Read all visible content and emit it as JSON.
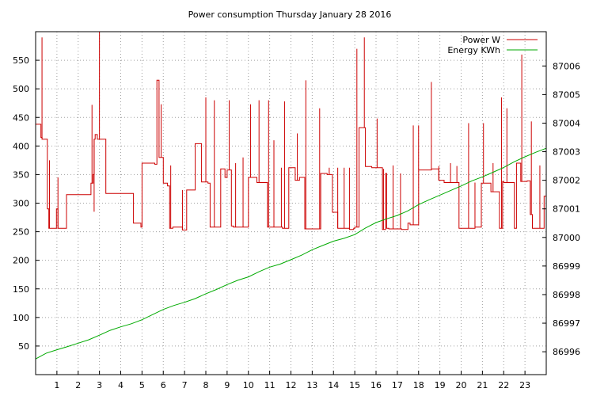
{
  "chart_data": {
    "type": "line",
    "title": "Power consumption Thursday January 28 2016",
    "xlabel": "",
    "ylabel": "",
    "y2label": "",
    "xlim": [
      0,
      24
    ],
    "ylim": [
      0,
      600
    ],
    "y2lim": [
      86995.2,
      87007.2
    ],
    "grid": true,
    "legend_position": "top-right",
    "x_ticks": [
      1,
      2,
      3,
      4,
      5,
      6,
      7,
      8,
      9,
      10,
      11,
      12,
      13,
      14,
      15,
      16,
      17,
      18,
      19,
      20,
      21,
      22,
      23
    ],
    "y_ticks": [
      50,
      100,
      150,
      200,
      250,
      300,
      350,
      400,
      450,
      500,
      550
    ],
    "y2_ticks": [
      86996,
      86997,
      86998,
      86999,
      87000,
      87001,
      87002,
      87003,
      87004,
      87005,
      87006
    ],
    "series": [
      {
        "name": "Power W",
        "axis": "left",
        "color": "#cc0000",
        "x": [
          0,
          0.25,
          0.25,
          0.3,
          0.3,
          0.55,
          0.55,
          0.62,
          0.62,
          0.72,
          0.72,
          0.98,
          0.98,
          1.05,
          1.05,
          1.45,
          1.45,
          2.6,
          2.6,
          2.7,
          2.7,
          2.75,
          2.75,
          2.8,
          2.8,
          2.9,
          2.9,
          3.0,
          3.0,
          3.05,
          3.05,
          3.3,
          3.3,
          4.6,
          4.6,
          4.95,
          4.95,
          5.0,
          5.0,
          5.6,
          5.6,
          5.7,
          5.7,
          5.8,
          5.8,
          6.0,
          6.0,
          6.2,
          6.2,
          6.3,
          6.3,
          6.45,
          6.45,
          6.9,
          6.9,
          7.1,
          7.1,
          7.5,
          7.5,
          7.8,
          7.8,
          8.1,
          8.1,
          8.2,
          8.2,
          8.7,
          8.7,
          8.9,
          8.9,
          9.0,
          9.0,
          9.2,
          9.2,
          9.3,
          9.3,
          10.0,
          10.0,
          10.4,
          10.4,
          10.8,
          10.8,
          10.9,
          10.9,
          11.6,
          11.6,
          11.9,
          11.9,
          12.2,
          12.2,
          12.4,
          12.4,
          12.65,
          12.65,
          13.4,
          13.4,
          13.7,
          13.7,
          13.95,
          13.95,
          14.2,
          14.2,
          14.75,
          14.75,
          14.95,
          14.95,
          15.0,
          15.0,
          15.2,
          15.2,
          15.3,
          15.3,
          15.5,
          15.5,
          15.8,
          15.8,
          16.3,
          16.3,
          16.45,
          16.45,
          16.5,
          16.5,
          16.6,
          16.6,
          17.2,
          17.2,
          17.5,
          17.5,
          17.6,
          17.6,
          18.0,
          18.0,
          18.6,
          18.6,
          18.95,
          18.95,
          19.2,
          19.2,
          19.9,
          19.9,
          20.3,
          20.3,
          20.65,
          20.65,
          20.95,
          20.95,
          21.4,
          21.4,
          21.8,
          21.8,
          21.95,
          21.95,
          22.0,
          22.0,
          22.4,
          22.4,
          22.5,
          22.5,
          22.6,
          22.6,
          22.8,
          22.8,
          23.1,
          23.1,
          23.25,
          23.25,
          23.35,
          23.35,
          23.75,
          23.75,
          23.9,
          23.9,
          24
        ],
        "values": [
          438,
          438,
          415,
          415,
          412,
          412,
          290,
          290,
          256,
          256,
          256,
          256,
          290,
          290,
          256,
          256,
          315,
          315,
          335,
          335,
          350,
          350,
          412,
          412,
          420,
          420,
          412,
          412,
          412,
          412,
          412,
          412,
          317,
          317,
          265,
          265,
          258,
          258,
          370,
          370,
          368,
          368,
          515,
          515,
          380,
          380,
          335,
          335,
          330,
          330,
          256,
          256,
          258,
          258,
          253,
          253,
          323,
          323,
          404,
          404,
          337,
          337,
          335,
          335,
          258,
          258,
          360,
          360,
          345,
          345,
          358,
          358,
          260,
          260,
          258,
          258,
          345,
          345,
          336,
          336,
          336,
          336,
          258,
          258,
          256,
          256,
          362,
          362,
          340,
          340,
          345,
          345,
          255,
          255,
          352,
          352,
          350,
          350,
          284,
          284,
          256,
          256,
          254,
          254,
          256,
          256,
          258,
          258,
          432,
          432,
          432,
          432,
          364,
          364,
          362,
          362,
          254,
          254,
          352,
          352,
          256,
          256,
          255,
          255,
          254,
          254,
          265,
          265,
          262,
          262,
          358,
          358,
          360,
          360,
          340,
          340,
          336,
          336,
          256,
          256,
          256,
          256,
          258,
          258,
          335,
          335,
          320,
          320,
          256,
          256,
          338,
          338,
          336,
          336,
          336,
          336,
          256,
          256,
          370,
          370,
          338,
          338,
          339,
          339,
          280,
          280,
          256,
          256,
          256,
          256,
          312,
          312
        ],
        "spikes": [
          [
            0.3,
            590
          ],
          [
            0.65,
            375
          ],
          [
            1.05,
            345
          ],
          [
            2.65,
            472
          ],
          [
            2.75,
            285
          ],
          [
            3.0,
            600
          ],
          [
            5.7,
            515
          ],
          [
            5.9,
            473
          ],
          [
            6.35,
            366
          ],
          [
            6.9,
            323
          ],
          [
            7.5,
            402
          ],
          [
            8.0,
            485
          ],
          [
            8.4,
            480
          ],
          [
            9.1,
            480
          ],
          [
            9.4,
            370
          ],
          [
            9.75,
            380
          ],
          [
            10.1,
            473
          ],
          [
            10.5,
            480
          ],
          [
            10.95,
            480
          ],
          [
            11.2,
            410
          ],
          [
            11.55,
            362
          ],
          [
            11.7,
            478
          ],
          [
            12.3,
            422
          ],
          [
            12.7,
            515
          ],
          [
            13.35,
            466
          ],
          [
            13.8,
            362
          ],
          [
            14.2,
            362
          ],
          [
            14.5,
            362
          ],
          [
            14.75,
            362
          ],
          [
            15.1,
            570
          ],
          [
            15.45,
            590
          ],
          [
            16.05,
            448
          ],
          [
            16.35,
            360
          ],
          [
            16.8,
            366
          ],
          [
            17.15,
            352
          ],
          [
            17.75,
            436
          ],
          [
            18.0,
            436
          ],
          [
            18.6,
            512
          ],
          [
            18.95,
            365
          ],
          [
            19.5,
            370
          ],
          [
            19.8,
            365
          ],
          [
            20.35,
            440
          ],
          [
            20.65,
            336
          ],
          [
            21.05,
            440
          ],
          [
            21.5,
            370
          ],
          [
            21.9,
            485
          ],
          [
            22.15,
            466
          ],
          [
            22.85,
            560
          ],
          [
            23.3,
            443
          ],
          [
            23.7,
            366
          ]
        ]
      },
      {
        "name": "Energy KWh",
        "axis": "right",
        "color": "#00aa00",
        "x": [
          0,
          0.5,
          1,
          1.5,
          2,
          2.5,
          3,
          3.5,
          4,
          4.5,
          5,
          5.5,
          6,
          6.5,
          7,
          7.5,
          8,
          8.5,
          9,
          9.5,
          10,
          10.5,
          11,
          11.5,
          12,
          12.5,
          13,
          13.5,
          14,
          14.5,
          15,
          15.5,
          16,
          16.5,
          17,
          17.5,
          18,
          18.5,
          19,
          19.5,
          20,
          20.5,
          21,
          21.5,
          22,
          22.5,
          23,
          23.5,
          24
        ],
        "values": [
          86995.75,
          86995.95,
          86996.07,
          86996.18,
          86996.3,
          86996.42,
          86996.58,
          86996.75,
          86996.87,
          86996.98,
          86997.12,
          86997.3,
          86997.48,
          86997.62,
          86997.73,
          86997.86,
          86998.03,
          86998.18,
          86998.35,
          86998.5,
          86998.62,
          86998.8,
          86998.96,
          86999.07,
          86999.22,
          86999.38,
          86999.57,
          86999.72,
          86999.87,
          86999.97,
          87000.1,
          87000.33,
          87000.52,
          87000.65,
          87000.77,
          87000.93,
          87001.15,
          87001.32,
          87001.48,
          87001.64,
          87001.8,
          87001.98,
          87002.12,
          87002.28,
          87002.45,
          87002.65,
          87002.82,
          87002.98,
          87003.12
        ]
      }
    ]
  }
}
